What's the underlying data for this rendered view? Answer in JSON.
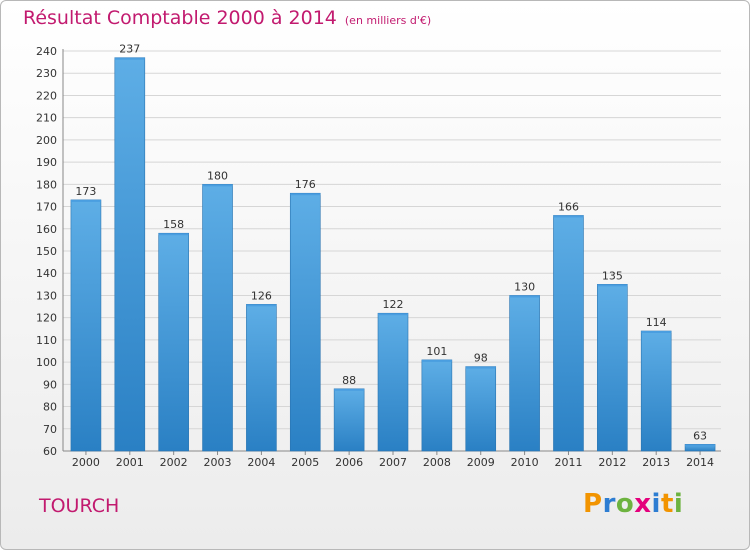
{
  "header": {
    "title": "Résultat Comptable 2000 à 2014",
    "subtitle": "(en milliers d'€)"
  },
  "footer": {
    "commune": "TOURCH",
    "logo_letters": [
      "P",
      "r",
      "o",
      "x",
      "i",
      "t",
      "i"
    ],
    "logo_colors": [
      "#f29400",
      "#2d7dd2",
      "#6db33f",
      "#e4007c",
      "#2d7dd2",
      "#f29400",
      "#6db33f"
    ]
  },
  "chart_data": {
    "type": "bar",
    "categories": [
      "2000",
      "2001",
      "2002",
      "2003",
      "2004",
      "2005",
      "2006",
      "2007",
      "2008",
      "2009",
      "2010",
      "2011",
      "2012",
      "2013",
      "2014"
    ],
    "values": [
      173,
      237,
      158,
      180,
      126,
      176,
      88,
      122,
      101,
      98,
      130,
      166,
      135,
      114,
      63
    ],
    "ylim": [
      60,
      240
    ],
    "yticks": [
      60,
      70,
      80,
      90,
      100,
      110,
      120,
      130,
      140,
      150,
      160,
      170,
      180,
      190,
      200,
      210,
      220,
      230,
      240
    ],
    "grid": true,
    "bar_color_top": "#5eaee6",
    "bar_color_bottom": "#2a80c4"
  }
}
